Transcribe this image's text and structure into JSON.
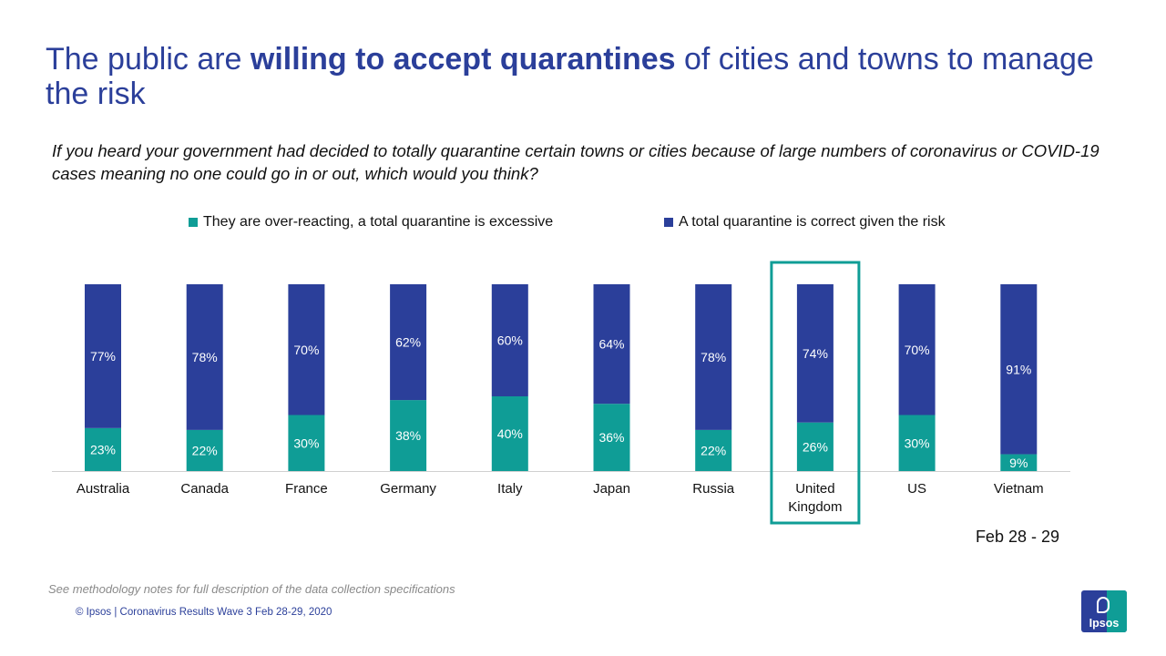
{
  "title": {
    "part1": "The public are ",
    "bold": "willing to accept quarantines",
    "part2": " of cities and towns to manage the risk"
  },
  "question": "If you heard your government had decided to totally quarantine certain towns or cities because of large numbers of coronavirus or COVID-19 cases meaning no one could go in or out, which would you think?",
  "date_label": "Feb 28 - 29",
  "footnote": "See methodology notes for full description of the data collection specifications",
  "copyright": "© Ipsos | Coronavirus Results Wave 3 Feb 28-29, 2020",
  "logo_text": "Ipsos",
  "colors": {
    "teal": "#0f9d96",
    "blue": "#2b3f9a",
    "highlight_box": "#0f9d96"
  },
  "chart_data": {
    "type": "bar",
    "stacked": true,
    "categories": [
      "Australia",
      "Canada",
      "France",
      "Germany",
      "Italy",
      "Japan",
      "Russia",
      "United Kingdom",
      "US",
      "Vietnam"
    ],
    "highlighted_category": "United Kingdom",
    "series": [
      {
        "name": "They are over-reacting, a total quarantine is excessive",
        "color": "#0f9d96",
        "values": [
          23,
          22,
          30,
          38,
          40,
          36,
          22,
          26,
          30,
          9
        ]
      },
      {
        "name": "A total quarantine is correct given the risk",
        "color": "#2b3f9a",
        "values": [
          77,
          78,
          70,
          62,
          60,
          64,
          78,
          74,
          70,
          91
        ]
      }
    ],
    "value_suffix": "%",
    "ylim": [
      0,
      100
    ],
    "legend_position": "top"
  }
}
